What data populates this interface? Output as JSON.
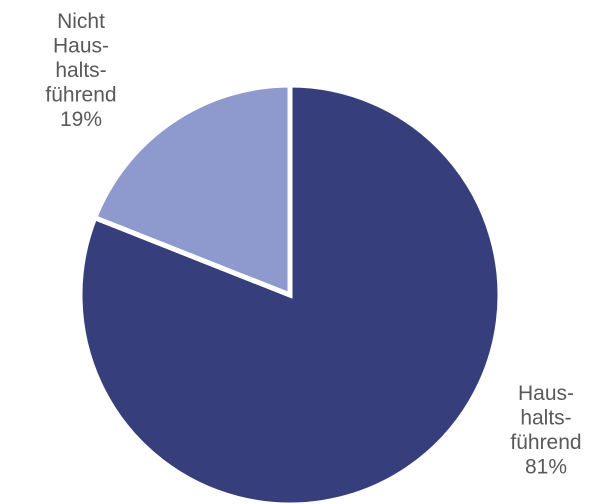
{
  "chart_data": {
    "type": "pie",
    "title": "",
    "start_angle_deg": 0,
    "direction": "clockwise",
    "slices": [
      {
        "name": "Haushaltsführend",
        "value": 81,
        "color": "#363F7B",
        "label_lines": [
          "Haus-",
          "halts-",
          "führend",
          "81%"
        ],
        "label_position": "bottom-right"
      },
      {
        "name": "Nicht Haushaltsführend",
        "value": 19,
        "color": "#8E99CE",
        "label_lines": [
          "Nicht",
          "Haus-",
          "halts-",
          "führend",
          "19%"
        ],
        "label_position": "top-left"
      }
    ]
  }
}
